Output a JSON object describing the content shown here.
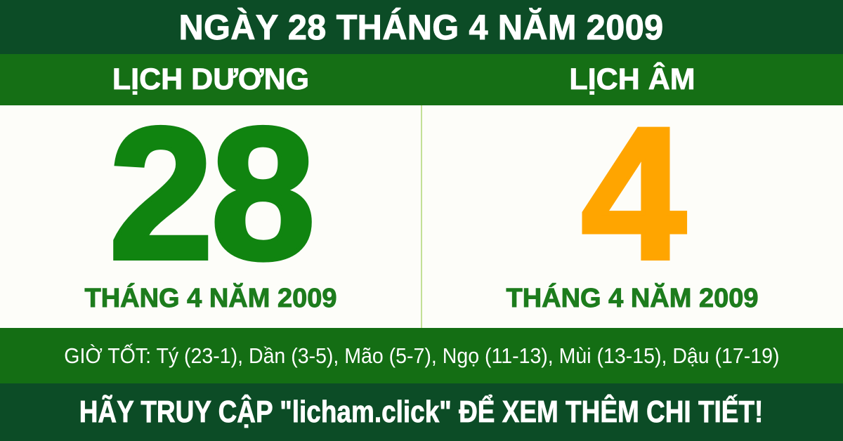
{
  "header": {
    "title": "NGÀY 28 THÁNG 4 NĂM 2009"
  },
  "columns": {
    "solar": {
      "label": "LỊCH DƯƠNG",
      "day": "28",
      "month_year": "THÁNG 4 NĂM 2009"
    },
    "lunar": {
      "label": "LỊCH ÂM",
      "day": "4",
      "month_year": "THÁNG 4 NĂM 2009"
    }
  },
  "good_hours": {
    "text": "GIỜ TỐT: Tý (23-1), Dần (3-5), Mão (5-7), Ngọ (11-13), Mùi (13-15), Dậu (17-19)"
  },
  "footer": {
    "cta": "HÃY TRUY CẬP \"licham.click\" ĐỂ XEM THÊM CHI TIẾT!"
  },
  "colors": {
    "dark_green": "#0c4c26",
    "bright_green": "#156f15",
    "good_hours_green": "#146e14",
    "solar_day_green": "#108410",
    "lunar_day_orange": "#ffa500",
    "month_text_green": "#1d7c1d",
    "divider_light_green": "#c3e096",
    "text_white": "#ffffff",
    "body_background": "#fdfdf9"
  }
}
